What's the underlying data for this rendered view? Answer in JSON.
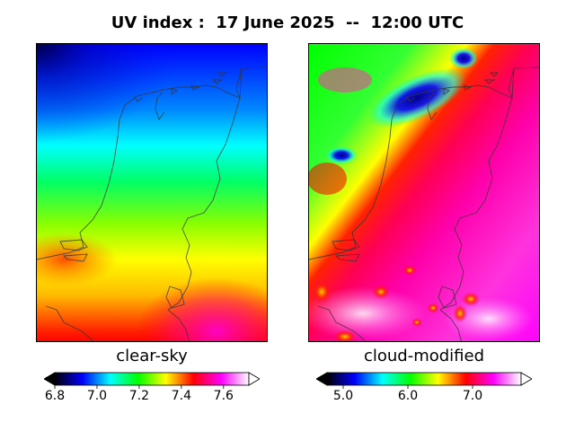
{
  "title": "UV index :  17 June 2025  --  12:00 UTC",
  "panels": [
    {
      "name": "clear-sky",
      "label": "clear-sky",
      "colorbar": {
        "min": 6.8,
        "max": 7.72,
        "ticks": [
          "6.8",
          "7.0",
          "7.2",
          "7.4",
          "7.6"
        ],
        "tick_values": [
          6.8,
          7.0,
          7.2,
          7.4,
          7.6
        ],
        "extend": "both",
        "colors": [
          "#000000",
          "#0000ff",
          "#00ffff",
          "#00ff00",
          "#ffff00",
          "#ff0000",
          "#ff00ff",
          "#ffffff"
        ]
      }
    },
    {
      "name": "cloud-modified",
      "label": "cloud-modified",
      "colorbar": {
        "min": 4.75,
        "max": 7.75,
        "ticks": [
          "5.0",
          "6.0",
          "7.0"
        ],
        "tick_values": [
          5.0,
          6.0,
          7.0
        ],
        "extend": "both",
        "colors": [
          "#000000",
          "#0000ff",
          "#00ffff",
          "#00ff00",
          "#ffff00",
          "#ff0000",
          "#ff00ff",
          "#ffffff"
        ]
      }
    }
  ]
}
